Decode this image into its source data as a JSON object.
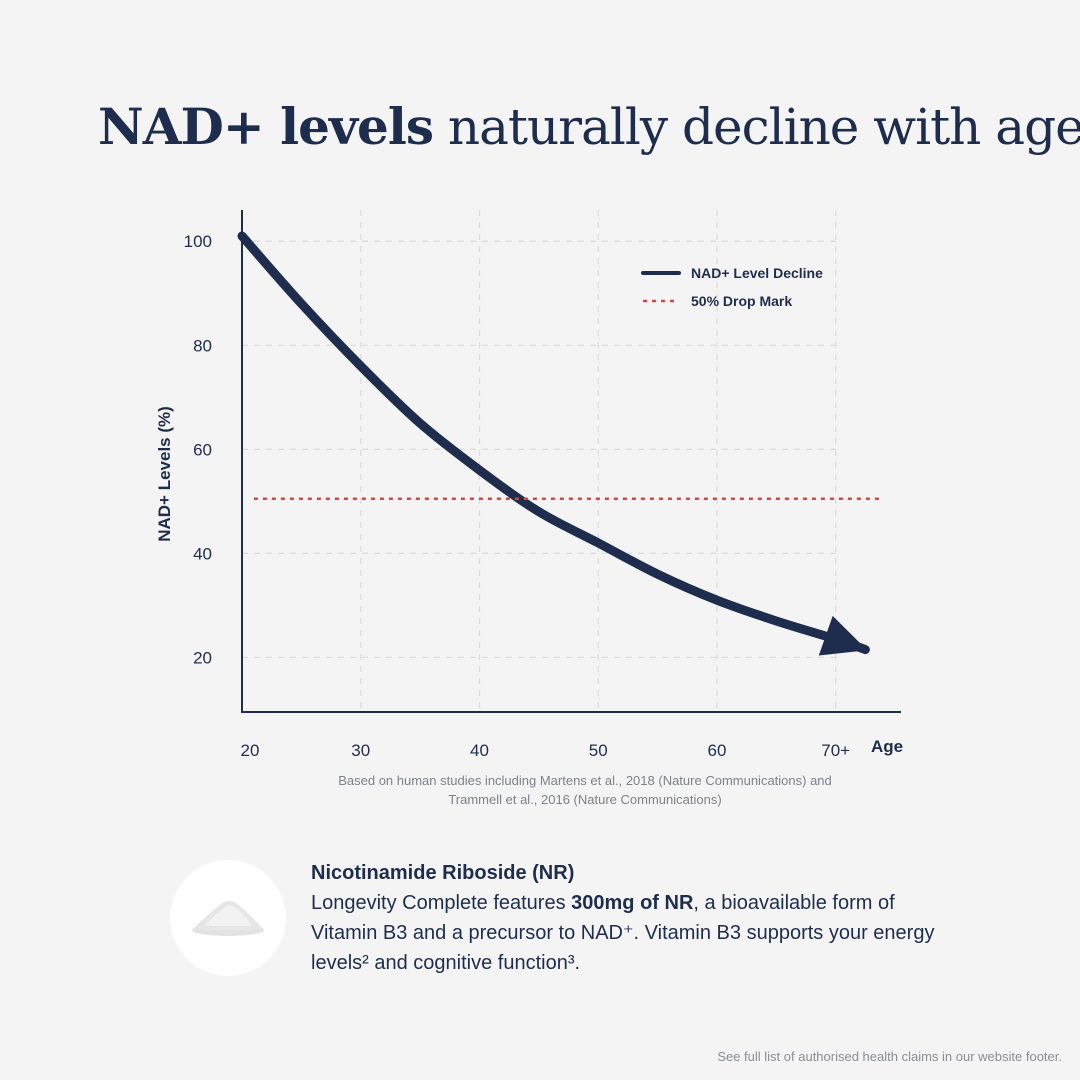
{
  "headline": {
    "bold": "NAD+ levels",
    "rest": " naturally decline with age"
  },
  "chart_data": {
    "type": "line",
    "ylabel": "NAD+ Levels (%)",
    "xlabel": "Age",
    "x_ticks": [
      "20",
      "30",
      "40",
      "50",
      "60",
      "70+"
    ],
    "y_ticks": [
      "100",
      "80",
      "60",
      "40",
      "20"
    ],
    "xlim": [
      20,
      75.5
    ],
    "ylim": [
      9.5,
      106
    ],
    "grid": true,
    "legend_position": "top-right",
    "series": [
      {
        "name": "NAD+ Level Decline",
        "color": "#1e2d4d",
        "style": "solid",
        "x": [
          20,
          25,
          30,
          35,
          40,
          45,
          50,
          55,
          60,
          65,
          70,
          72.5
        ],
        "y": [
          101,
          88,
          76,
          65,
          56,
          48,
          42,
          36,
          31,
          27,
          23.5,
          21.5
        ]
      },
      {
        "name": "50% Drop Mark",
        "color": "#d9453d",
        "style": "dotted",
        "x": [
          21,
          74
        ],
        "y": [
          50.5,
          50.5
        ]
      }
    ]
  },
  "caption": "Based on human studies including Martens et al., 2018 (Nature Communications) and Trammell et al., 2016 (Nature Communications)",
  "product": {
    "title": "Nicotinamide Riboside (NR)",
    "text_before": "Longevity Complete features ",
    "text_bold": "300mg of NR",
    "text_after": ", a bioavailable form of Vitamin B3 and a precursor to NAD⁺. Vitamin B3 supports your energy levels² and cognitive function³."
  },
  "footer": "See full list of authorised health claims in our website footer.",
  "colors": {
    "navy": "#1e2d4d",
    "red": "#d9453d",
    "background": "#f4f4f4"
  }
}
